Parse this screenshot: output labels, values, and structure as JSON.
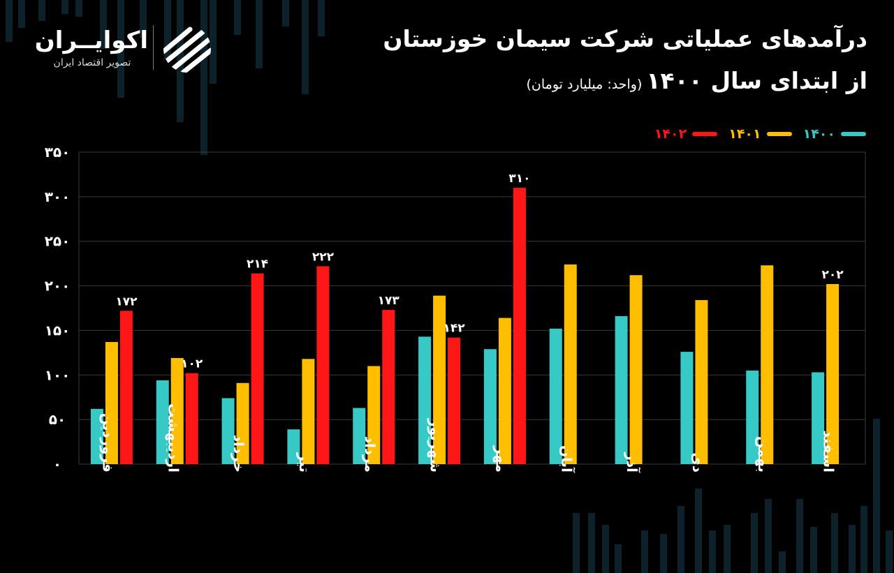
{
  "header": {
    "title_line1": "درآمدهای عملیاتی شرکت سیمان خوزستان",
    "title_line2": "از ابتدای سال ۱۴۰۰",
    "unit": "(واحد: میلیارد تومان)"
  },
  "brand": {
    "name": "اکوایــران",
    "tagline": "تصویر اقتصاد ایران"
  },
  "colors": {
    "background": "#000000",
    "series_1400": "#36c9c6",
    "series_1401": "#ffbf00",
    "series_1402": "#ff1616",
    "grid": "#3a3a3a"
  },
  "chart_data": {
    "type": "bar",
    "categories": [
      "فروردین",
      "اردیبهشت",
      "خرداد",
      "تیر",
      "مرداد",
      "شهریور",
      "مهر",
      "آبان",
      "آذر",
      "دی",
      "بهمن",
      "اسفند"
    ],
    "series": [
      {
        "name": "۱۴۰۰",
        "color": "#36c9c6",
        "values": [
          62,
          94,
          74,
          39,
          63,
          143,
          129,
          152,
          166,
          126,
          105,
          103
        ]
      },
      {
        "name": "۱۴۰۱",
        "color": "#ffbf00",
        "values": [
          137,
          119,
          91,
          118,
          110,
          189,
          164,
          224,
          212,
          184,
          223,
          202
        ]
      },
      {
        "name": "۱۴۰۲",
        "color": "#ff1616",
        "values": [
          172,
          102,
          214,
          222,
          173,
          142,
          310,
          null,
          null,
          null,
          null,
          null
        ]
      }
    ],
    "data_labels": [
      {
        "series": 2,
        "index": 0,
        "text": "۱۷۲"
      },
      {
        "series": 2,
        "index": 1,
        "text": "۱۰۲"
      },
      {
        "series": 2,
        "index": 2,
        "text": "۲۱۴"
      },
      {
        "series": 2,
        "index": 3,
        "text": "۲۲۲"
      },
      {
        "series": 2,
        "index": 4,
        "text": "۱۷۳"
      },
      {
        "series": 2,
        "index": 5,
        "text": "۱۴۲"
      },
      {
        "series": 2,
        "index": 6,
        "text": "۳۱۰"
      },
      {
        "series": 1,
        "index": 11,
        "text": "۲۰۲"
      }
    ],
    "yticks": [
      {
        "value": 0,
        "label": "۰"
      },
      {
        "value": 50,
        "label": "۵۰"
      },
      {
        "value": 100,
        "label": "۱۰۰"
      },
      {
        "value": 150,
        "label": "۱۵۰"
      },
      {
        "value": 200,
        "label": "۲۰۰"
      },
      {
        "value": 250,
        "label": "۲۵۰"
      },
      {
        "value": 300,
        "label": "۳۰۰"
      },
      {
        "value": 350,
        "label": "۳۵۰"
      }
    ],
    "ylim": [
      0,
      350
    ],
    "grid": true,
    "legend_position": "top-right",
    "title": "درآمدهای عملیاتی شرکت سیمان خوزستان",
    "xlabel": "",
    "ylabel": ""
  }
}
